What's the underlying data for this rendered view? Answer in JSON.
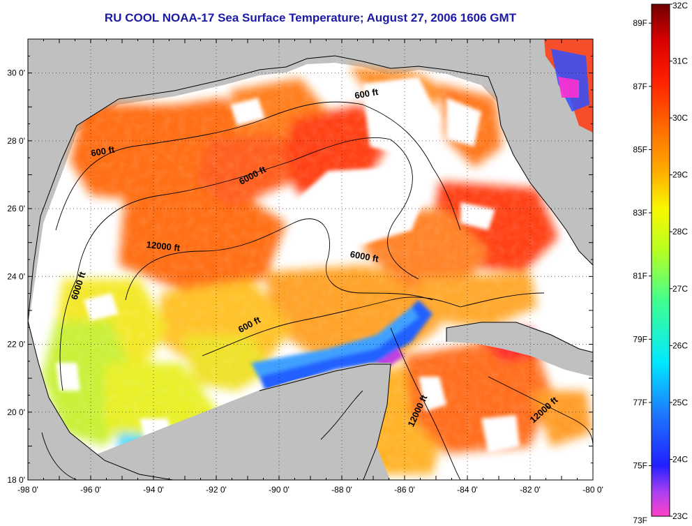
{
  "title": "RU COOL  NOAA-17  Sea Surface Temperature;  August 27, 2006 1606 GMT",
  "map": {
    "lon_range": [
      -98,
      -80
    ],
    "lat_range": [
      18,
      31
    ],
    "x_ticks": [
      {
        "value": -98,
        "label": "-98 0'"
      },
      {
        "value": -96,
        "label": "-96 0'"
      },
      {
        "value": -94,
        "label": "-94 0'"
      },
      {
        "value": -92,
        "label": "-92 0'"
      },
      {
        "value": -90,
        "label": "-90 0'"
      },
      {
        "value": -88,
        "label": "-88 0'"
      },
      {
        "value": -86,
        "label": "-86 0'"
      },
      {
        "value": -84,
        "label": "-84 0'"
      },
      {
        "value": -82,
        "label": "-82 0'"
      },
      {
        "value": -80,
        "label": "-80 0'"
      }
    ],
    "y_ticks": [
      {
        "value": 30,
        "label": "30 0'"
      },
      {
        "value": 28,
        "label": "28 0'"
      },
      {
        "value": 26,
        "label": "26 0'"
      },
      {
        "value": 24,
        "label": "24 0'"
      },
      {
        "value": 22,
        "label": "22 0'"
      },
      {
        "value": 20,
        "label": "20 0'"
      },
      {
        "value": 18,
        "label": "18 0'"
      }
    ],
    "grid": "dotted",
    "land_color": "#c0c0c0",
    "cloud_color": "#ffffff",
    "contour_labels": [
      {
        "text": "600 ft",
        "lon": -95.6,
        "lat": 27.6,
        "rotate": -10
      },
      {
        "text": "600 ft",
        "lon": -87.2,
        "lat": 29.3,
        "rotate": -10
      },
      {
        "text": "6000 ft",
        "lon": -90.8,
        "lat": 26.9,
        "rotate": -28
      },
      {
        "text": "12000 ft",
        "lon": -93.7,
        "lat": 24.8,
        "rotate": 6
      },
      {
        "text": "6000 ft",
        "lon": -96.3,
        "lat": 23.7,
        "rotate": -72
      },
      {
        "text": "6000 ft",
        "lon": -87.3,
        "lat": 24.5,
        "rotate": 10
      },
      {
        "text": "600 ft",
        "lon": -90.9,
        "lat": 22.5,
        "rotate": -28
      },
      {
        "text": "12000 ft",
        "lon": -85.5,
        "lat": 20.0,
        "rotate": -65
      },
      {
        "text": "12000 ft",
        "lon": -81.5,
        "lat": 20.0,
        "rotate": -42
      }
    ]
  },
  "colorbar": {
    "min_c": 23,
    "max_c": 32,
    "celsius_labels": [
      "32C",
      "31C",
      "30C",
      "29C",
      "28C",
      "27C",
      "26C",
      "25C",
      "24C",
      "23C"
    ],
    "fahrenheit_labels": [
      "89F",
      "87F",
      "85F",
      "83F",
      "81F",
      "79F",
      "77F",
      "75F",
      "73F"
    ],
    "fahrenheit_values": [
      89,
      87,
      85,
      83,
      81,
      79,
      77,
      75,
      73
    ],
    "stops": [
      {
        "t": 0.0,
        "color": "#ff40c8"
      },
      {
        "t": 0.045,
        "color": "#b040f0"
      },
      {
        "t": 0.1,
        "color": "#2020ff"
      },
      {
        "t": 0.2,
        "color": "#1e78ff"
      },
      {
        "t": 0.3,
        "color": "#00e8ff"
      },
      {
        "t": 0.42,
        "color": "#40ff90"
      },
      {
        "t": 0.52,
        "color": "#b8ff20"
      },
      {
        "t": 0.6,
        "color": "#f8f800"
      },
      {
        "t": 0.67,
        "color": "#ffb000"
      },
      {
        "t": 0.76,
        "color": "#ff6a00"
      },
      {
        "t": 0.85,
        "color": "#ff2000"
      },
      {
        "t": 0.93,
        "color": "#d80000"
      },
      {
        "t": 1.0,
        "color": "#700000"
      }
    ]
  }
}
